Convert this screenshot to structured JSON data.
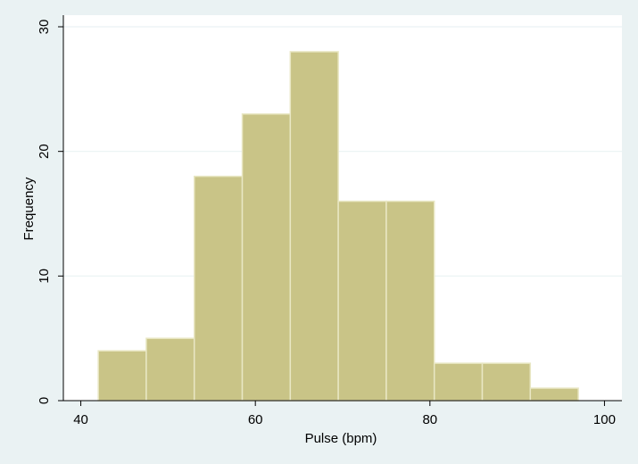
{
  "chart_data": {
    "type": "bar",
    "subtype": "histogram",
    "title": "",
    "xlabel": "Pulse (bpm)",
    "ylabel": "Frequency",
    "xlim": [
      38,
      102
    ],
    "ylim": [
      0,
      30
    ],
    "x_ticks": [
      40,
      60,
      80,
      100
    ],
    "y_ticks": [
      0,
      10,
      20,
      30
    ],
    "bins": [
      {
        "start": 42.0,
        "end": 47.5,
        "value": 4
      },
      {
        "start": 47.5,
        "end": 53.0,
        "value": 5
      },
      {
        "start": 53.0,
        "end": 58.5,
        "value": 18
      },
      {
        "start": 58.5,
        "end": 64.0,
        "value": 23
      },
      {
        "start": 64.0,
        "end": 69.5,
        "value": 28
      },
      {
        "start": 69.5,
        "end": 75.0,
        "value": 16
      },
      {
        "start": 75.0,
        "end": 80.5,
        "value": 16
      },
      {
        "start": 80.5,
        "end": 86.0,
        "value": 3
      },
      {
        "start": 86.0,
        "end": 91.5,
        "value": 3
      },
      {
        "start": 91.5,
        "end": 97.0,
        "value": 1
      }
    ],
    "grid": true,
    "colors": {
      "bar_fill": "#c9c487",
      "bar_edge": "#e9e7c4",
      "plot_background": "#ffffff",
      "outer_background": "#eaf2f3",
      "grid": "#eaf2f3",
      "axis": "#000000"
    }
  }
}
